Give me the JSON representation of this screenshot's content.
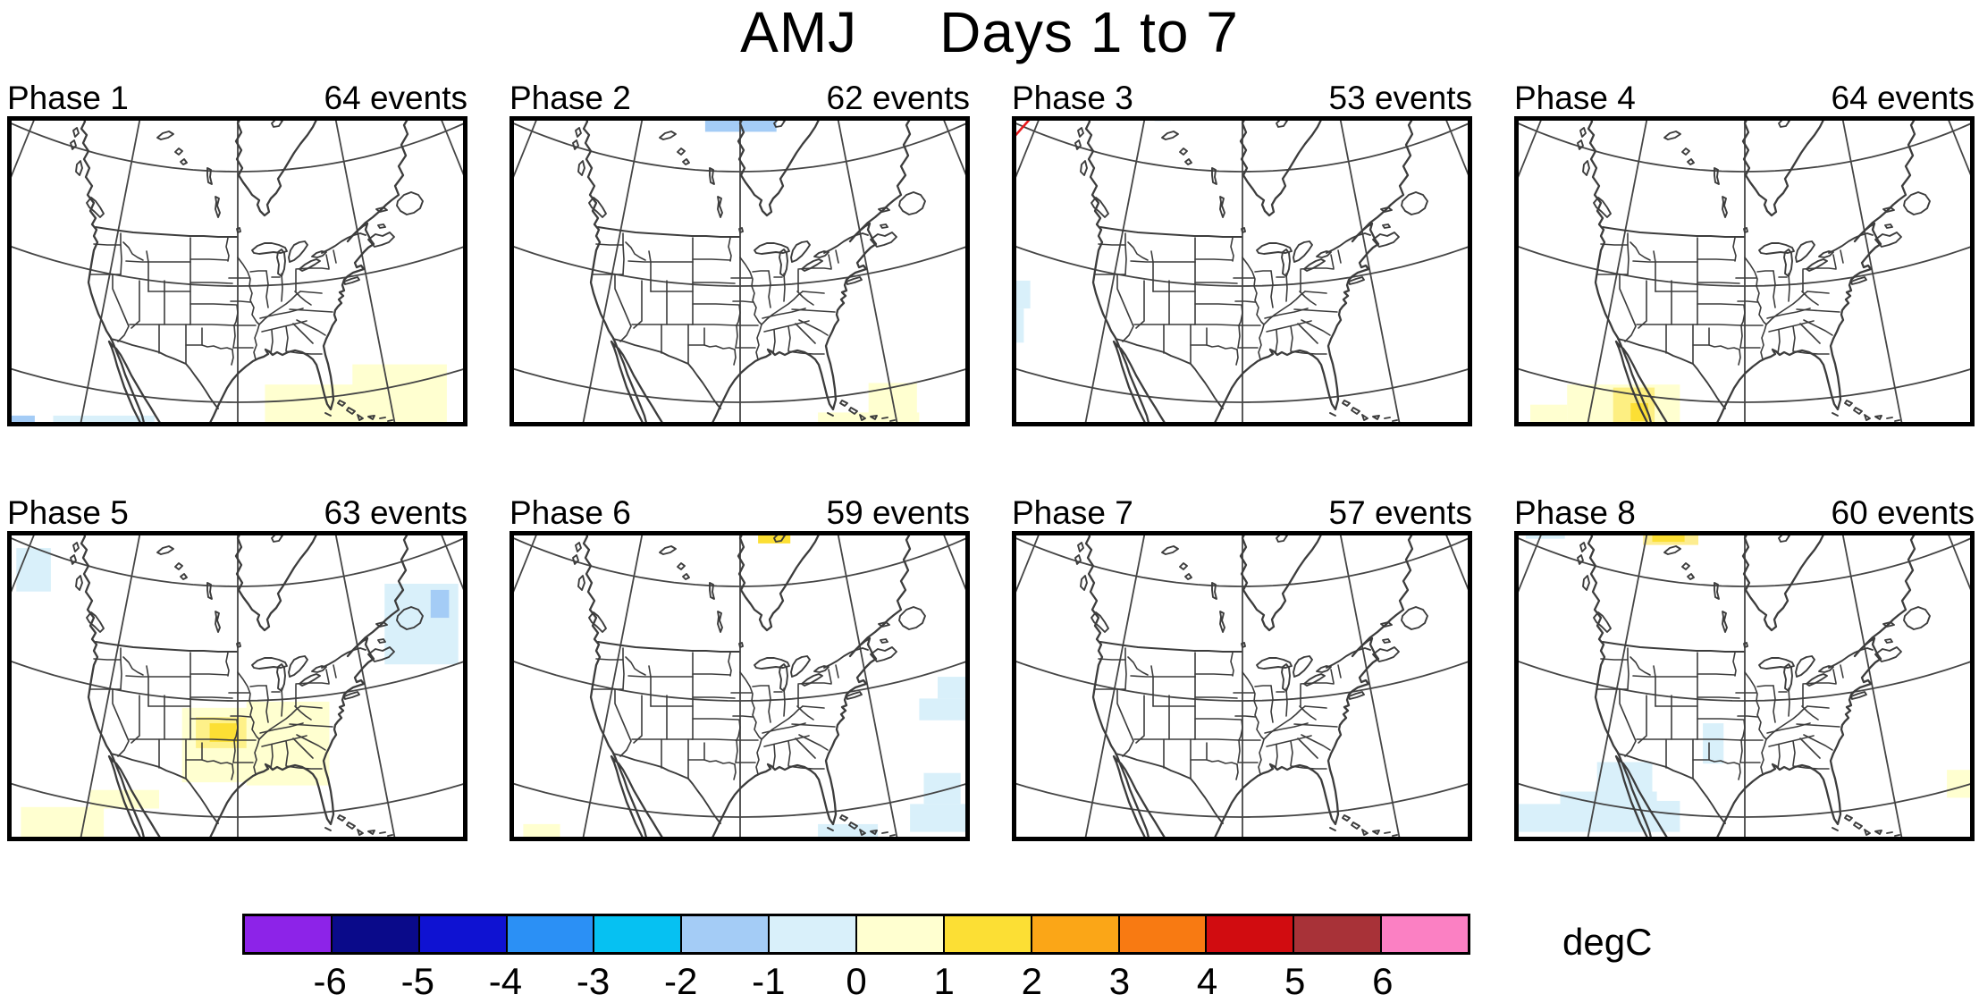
{
  "title": {
    "season": "AMJ",
    "period": "Days 1 to 7"
  },
  "unit_label": "degC",
  "panels": [
    {
      "label": "Phase 1",
      "events": "64 events",
      "patches": [
        [
          56,
          86.5,
          39,
          13.5,
          7
        ],
        [
          75,
          80,
          20.5,
          20,
          7
        ],
        [
          10,
          96.5,
          22,
          3.5,
          6
        ],
        [
          0,
          96.5,
          6,
          3.5,
          5
        ]
      ]
    },
    {
      "label": "Phase 2",
      "events": "62 events",
      "patches": [
        [
          42.5,
          0,
          15.5,
          5,
          5
        ],
        [
          78,
          86,
          10.5,
          14,
          7
        ],
        [
          67,
          95.5,
          22,
          4.5,
          7
        ]
      ]
    },
    {
      "label": "Phase 3",
      "events": "53 events",
      "patches": [
        [
          0,
          53,
          4,
          9,
          6
        ],
        [
          0,
          62,
          2.6,
          11,
          6
        ],
        [
          31,
          0,
          3.5,
          1.5,
          5
        ]
      ],
      "contour": {
        "color": "#e8191c",
        "points": [
          [
            0,
            7.5
          ],
          [
            4.3,
            0.3
          ]
        ]
      }
    },
    {
      "label": "Phase 4",
      "events": "64 events",
      "patches": [
        [
          11.5,
          86.5,
          24.5,
          13.5,
          7
        ],
        [
          3.5,
          93,
          8,
          7,
          7
        ],
        [
          21.5,
          87.5,
          9,
          12.5,
          8,
          0.5
        ],
        [
          25.3,
          92.5,
          3.8,
          5.8,
          8
        ]
      ]
    },
    {
      "label": "Phase 5",
      "events": "63 events",
      "patches": [
        [
          2,
          5.5,
          7.5,
          14,
          6
        ],
        [
          82,
          17,
          16,
          26,
          6
        ],
        [
          92,
          19,
          4,
          9,
          5
        ],
        [
          38,
          57,
          24,
          24,
          7
        ],
        [
          52,
          55,
          18,
          27,
          7
        ],
        [
          18,
          83.5,
          15,
          6,
          7
        ],
        [
          3,
          89,
          18,
          11,
          7
        ],
        [
          41,
          60,
          11,
          10,
          8,
          0.45
        ],
        [
          44,
          62,
          6,
          6,
          8
        ]
      ]
    },
    {
      "label": "Phase 6",
      "events": "59 events",
      "patches": [
        [
          54,
          0,
          7,
          4,
          8
        ],
        [
          93,
          47,
          7,
          7,
          6
        ],
        [
          89,
          54,
          11,
          7,
          6
        ],
        [
          90,
          78,
          8,
          10,
          6
        ],
        [
          87,
          88,
          13,
          9,
          6
        ],
        [
          67,
          94.5,
          13,
          4.5,
          6
        ],
        [
          3,
          94.5,
          8,
          5,
          7
        ]
      ]
    },
    {
      "label": "Phase 7",
      "events": "57 events",
      "patches": []
    },
    {
      "label": "Phase 8",
      "events": "60 events",
      "patches": [
        [
          28,
          0,
          12,
          4.5,
          8,
          0.55
        ],
        [
          30,
          0,
          7,
          3.5,
          8
        ],
        [
          2.5,
          0,
          8.5,
          2.5,
          6
        ],
        [
          18,
          74.5,
          12,
          13,
          6
        ],
        [
          10,
          84,
          21,
          13,
          6
        ],
        [
          1,
          88,
          11,
          9,
          6
        ],
        [
          22,
          87,
          14,
          10,
          6
        ],
        [
          41,
          62,
          4.5,
          13,
          6
        ],
        [
          94,
          77,
          5.5,
          9,
          7
        ]
      ]
    }
  ],
  "colorbar": {
    "tick_labels": [
      "-6",
      "-5",
      "-4",
      "-3",
      "-2",
      "-1",
      "0",
      "1",
      "2",
      "3",
      "4",
      "5",
      "6"
    ],
    "colors": [
      "#8d23e8",
      "#0a0a8a",
      "#0f12d2",
      "#2b90f5",
      "#06c1f2",
      "#a4ccf6",
      "#d9f0fa",
      "#ffffd0",
      "#fcdf34",
      "#fba617",
      "#f87a12",
      "#d10c10",
      "#a83238",
      "#fb80c3"
    ]
  },
  "chart_data": {
    "type": "heatmap",
    "title": "AMJ    Days 1 to 7",
    "subtitle": "Composite surface temperature anomaly maps of North America by MJO phase",
    "unit": "degC",
    "colorbar_levels": [
      -6,
      -5,
      -4,
      -3,
      -2,
      -1,
      0,
      1,
      2,
      3,
      4,
      5,
      6
    ],
    "legend_position": "bottom",
    "panels": [
      {
        "phase": "Phase 1",
        "events": 64,
        "notable_anomalies": "weak 0 to 1 degC warm patch over Florida/Gulf coast; weak -1 to -2 degC near bottom-left edge"
      },
      {
        "phase": "Phase 2",
        "events": 62,
        "notable_anomalies": "-1 to -2 degC patch at far north (top edge); 0 to 1 degC patch southeast of Florida"
      },
      {
        "phase": "Phase 3",
        "events": 53,
        "notable_anomalies": "red contour segment top-left corner; weak -1 to 0 degC sliver on Pacific coast edge"
      },
      {
        "phase": "Phase 4",
        "events": 64,
        "notable_anomalies": "0 to 2 degC warm patch over Baja California / northwest Mexico"
      },
      {
        "phase": "Phase 5",
        "events": 63,
        "notable_anomalies": "0 to 2 degC warm area over central/southeastern US with 1-2 degC core near Kansas; -1 to -2 degC patches near Newfoundland and top-left edge"
      },
      {
        "phase": "Phase 6",
        "events": 59,
        "notable_anomalies": "1 to 2 degC spot at top of Hudson Bay; -1 to 0 degC patches along right (Atlantic) edge"
      },
      {
        "phase": "Phase 7",
        "events": 57,
        "notable_anomalies": "no shaded anomalies"
      },
      {
        "phase": "Phase 8",
        "events": 60,
        "notable_anomalies": "1 to 2 degC patch in far north; -1 to 0 degC patches over Baja California / northwest Mexico and southern plains"
      }
    ]
  }
}
